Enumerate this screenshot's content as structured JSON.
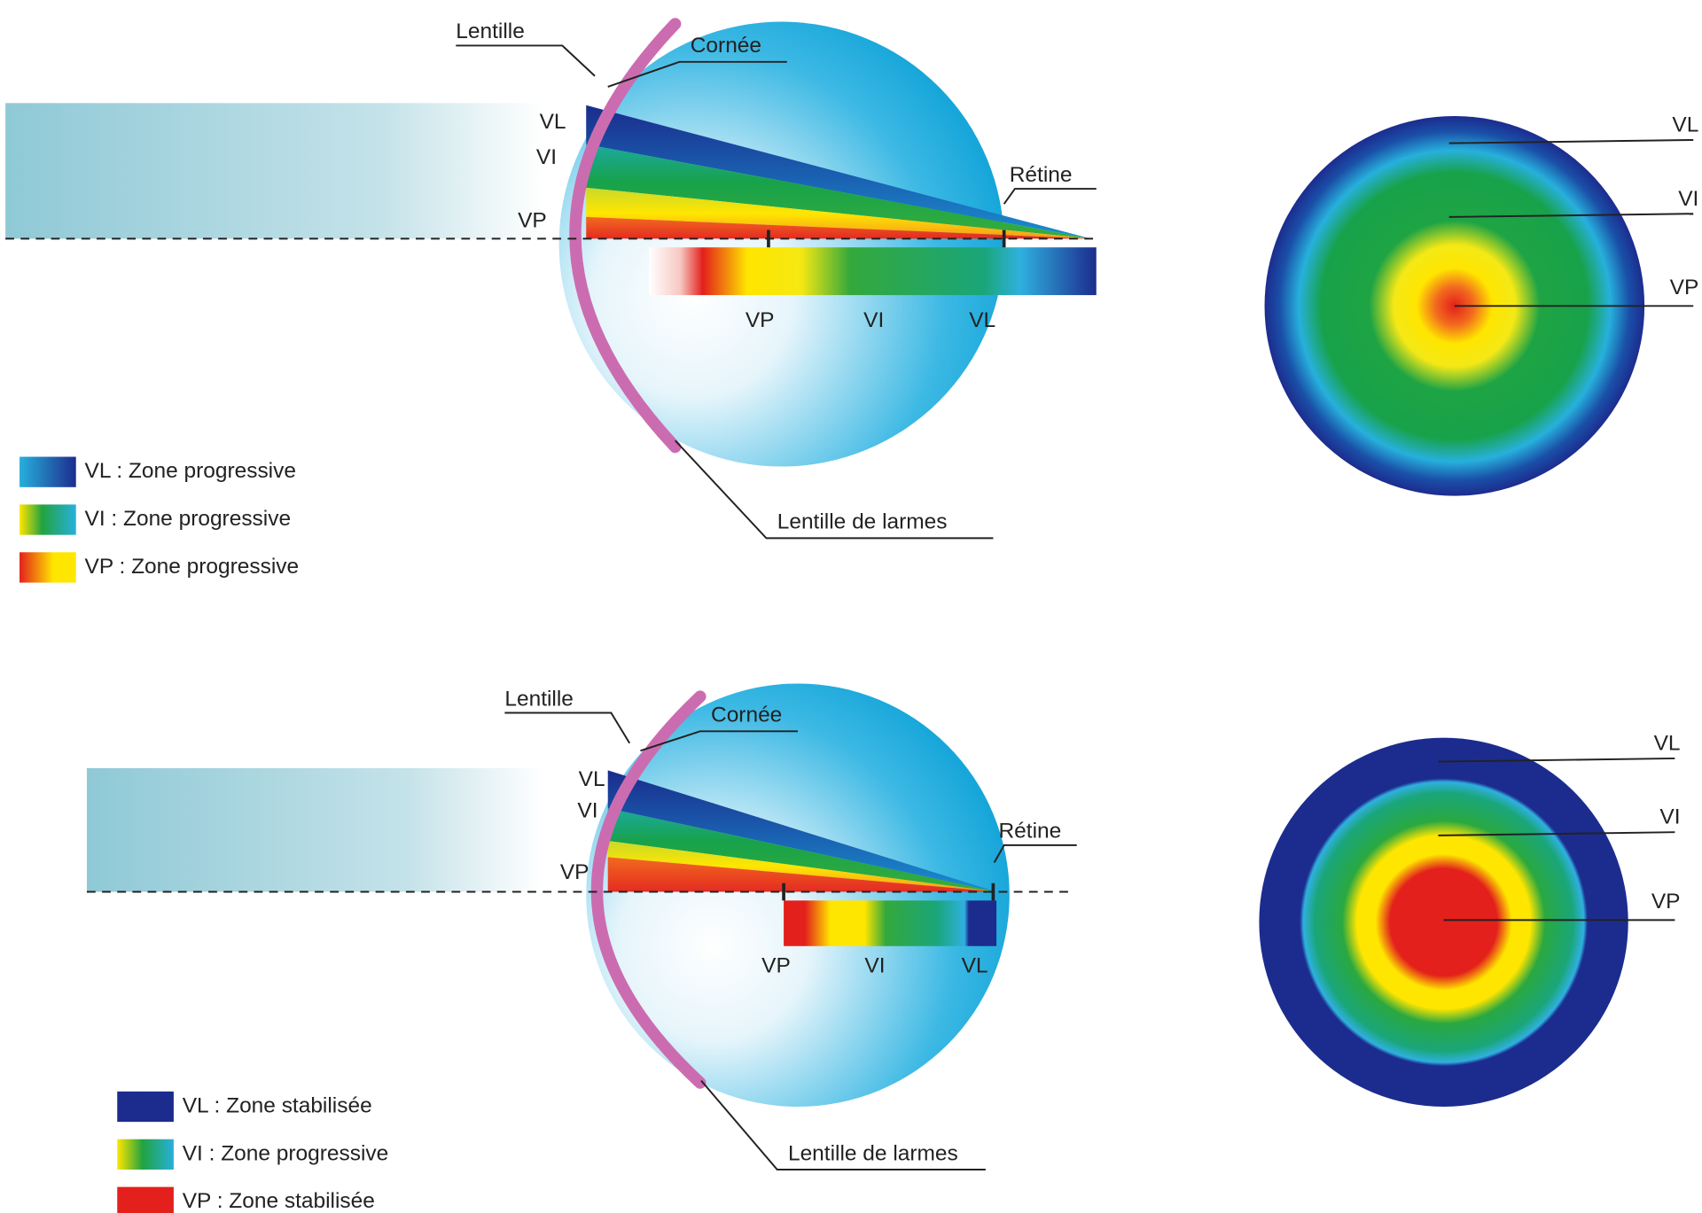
{
  "panels": [
    {
      "labels": {
        "lens": "Lentille",
        "cornea": "Cornée",
        "retina": "Rétine",
        "tear_lens": "Lentille de larmes"
      },
      "ray_labels": [
        "VL",
        "VI",
        "VP"
      ],
      "bar_labels": [
        "VP",
        "VI",
        "VL"
      ],
      "target_labels": [
        "VL",
        "VI",
        "VP"
      ],
      "legend": [
        "VL : Zone progressive",
        "VI : Zone progressive",
        "VP : Zone progressive"
      ]
    },
    {
      "labels": {
        "lens": "Lentille",
        "cornea": "Cornée",
        "retina": "Rétine",
        "tear_lens": "Lentille de larmes"
      },
      "ray_labels": [
        "VL",
        "VI",
        "VP"
      ],
      "bar_labels": [
        "VP",
        "VI",
        "VL"
      ],
      "target_labels": [
        "VL",
        "VI",
        "VP"
      ],
      "legend": [
        "VL : Zone stabilisée",
        "VI : Zone progressive",
        "VP : Zone stabilisée"
      ]
    }
  ]
}
